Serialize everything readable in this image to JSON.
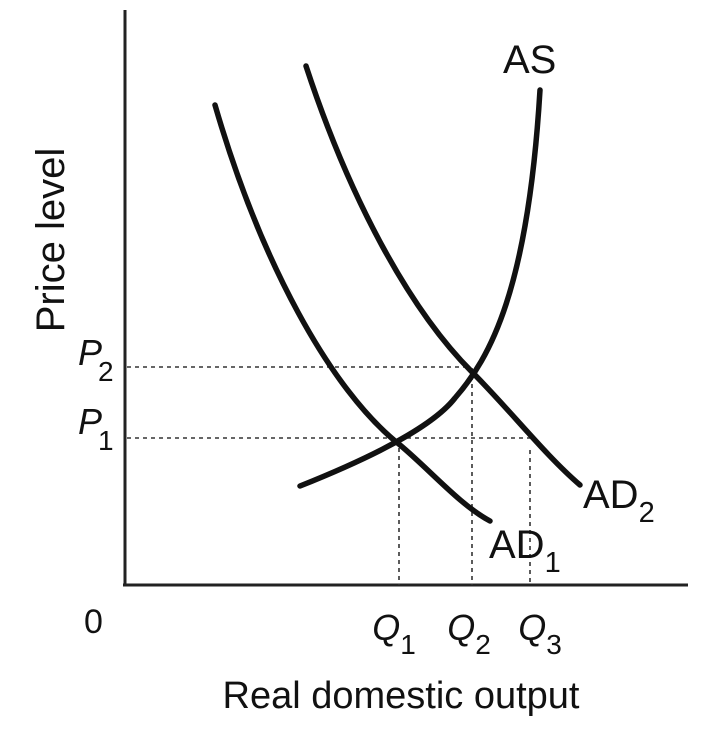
{
  "diagram": {
    "y_axis_label": "Price level",
    "x_axis_label": "Real domestic output",
    "origin_label": "0",
    "curves": [
      {
        "id": "as",
        "label": "AS",
        "label_sub": ""
      },
      {
        "id": "ad1",
        "label": "AD",
        "label_sub": "1"
      },
      {
        "id": "ad2",
        "label": "AD",
        "label_sub": "2"
      }
    ],
    "price_ticks": [
      {
        "id": "p1",
        "label": "P",
        "sub": "1"
      },
      {
        "id": "p2",
        "label": "P",
        "sub": "2"
      }
    ],
    "output_ticks": [
      {
        "id": "q1",
        "label": "Q",
        "sub": "1"
      },
      {
        "id": "q2",
        "label": "Q",
        "sub": "2"
      },
      {
        "id": "q3",
        "label": "Q",
        "sub": "3"
      }
    ]
  }
}
